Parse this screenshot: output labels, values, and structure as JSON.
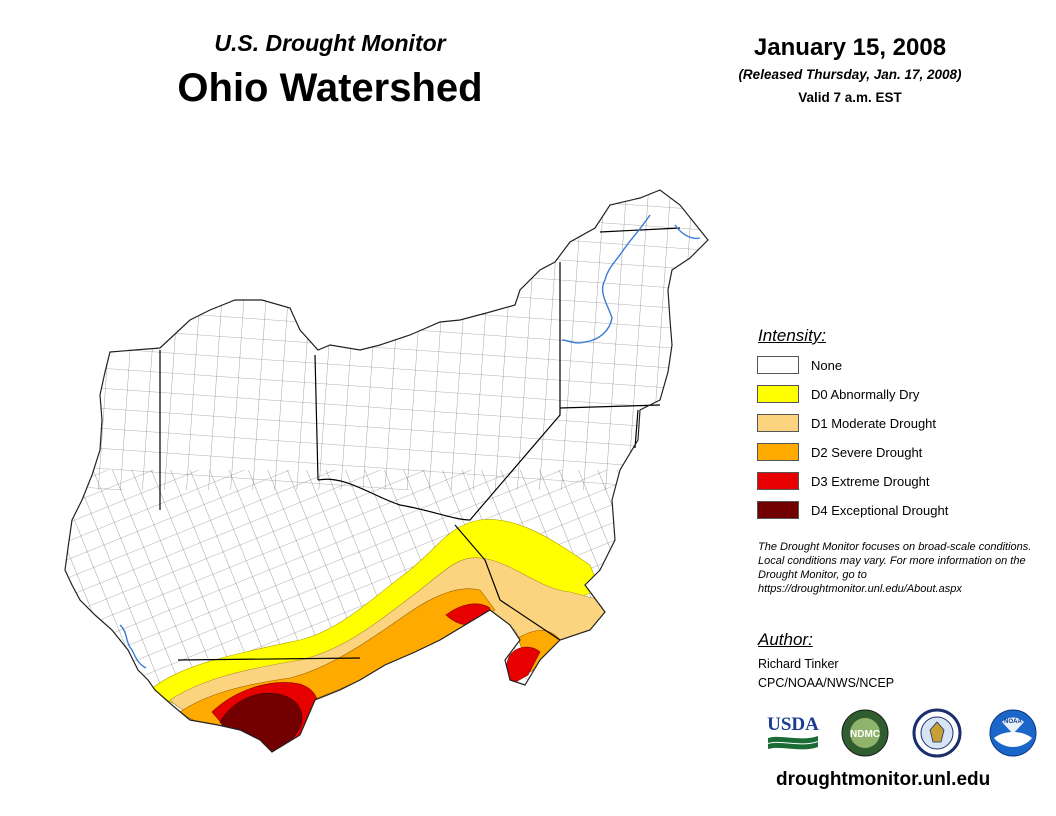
{
  "header": {
    "subtitle": "U.S. Drought Monitor",
    "title": "Ohio Watershed",
    "date": "January 15, 2008",
    "released": "(Released Thursday, Jan. 17, 2008)",
    "valid": "Valid 7 a.m. EST"
  },
  "legend": {
    "title": "Intensity:",
    "items": [
      {
        "label": "None",
        "color": "#ffffff"
      },
      {
        "label": "D0 Abnormally Dry",
        "color": "#ffff00"
      },
      {
        "label": "D1 Moderate Drought",
        "color": "#fcd37f"
      },
      {
        "label": "D2 Severe Drought",
        "color": "#ffaa00"
      },
      {
        "label": "D3 Extreme Drought",
        "color": "#e60000"
      },
      {
        "label": "D4 Exceptional Drought",
        "color": "#730000"
      }
    ]
  },
  "note": "The Drought Monitor focuses on broad-scale conditions. Local conditions may vary. For more information on the Drought Monitor, go to https://droughtmonitor.unl.edu/About.aspx",
  "author": {
    "title": "Author:",
    "name": "Richard Tinker",
    "org": "CPC/NOAA/NWS/NCEP"
  },
  "logos": {
    "usda": "USDA",
    "ndmc": "NDMC",
    "noaa": "NOAA"
  },
  "website": "droughtmonitor.unl.edu",
  "colors": {
    "river": "#3a7bd5",
    "county_line": "#555555",
    "state_line": "#000000"
  }
}
